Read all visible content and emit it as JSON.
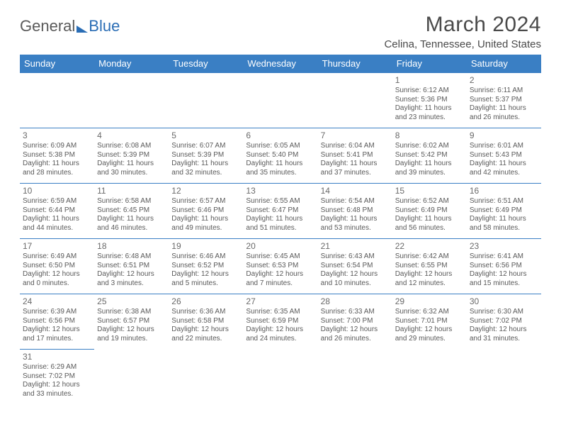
{
  "logo": {
    "general": "General",
    "blue": "Blue"
  },
  "title": "March 2024",
  "location": "Celina, Tennessee, United States",
  "weekdays": [
    "Sunday",
    "Monday",
    "Tuesday",
    "Wednesday",
    "Thursday",
    "Friday",
    "Saturday"
  ],
  "colors": {
    "header_bg": "#3a7fc4",
    "header_text": "#ffffff",
    "border": "#3a7fc4",
    "logo_blue": "#2a6db5",
    "text": "#4a4a4a"
  },
  "days": {
    "1": {
      "sunrise": "6:12 AM",
      "sunset": "5:36 PM",
      "daylight": "11 hours and 23 minutes."
    },
    "2": {
      "sunrise": "6:11 AM",
      "sunset": "5:37 PM",
      "daylight": "11 hours and 26 minutes."
    },
    "3": {
      "sunrise": "6:09 AM",
      "sunset": "5:38 PM",
      "daylight": "11 hours and 28 minutes."
    },
    "4": {
      "sunrise": "6:08 AM",
      "sunset": "5:39 PM",
      "daylight": "11 hours and 30 minutes."
    },
    "5": {
      "sunrise": "6:07 AM",
      "sunset": "5:39 PM",
      "daylight": "11 hours and 32 minutes."
    },
    "6": {
      "sunrise": "6:05 AM",
      "sunset": "5:40 PM",
      "daylight": "11 hours and 35 minutes."
    },
    "7": {
      "sunrise": "6:04 AM",
      "sunset": "5:41 PM",
      "daylight": "11 hours and 37 minutes."
    },
    "8": {
      "sunrise": "6:02 AM",
      "sunset": "5:42 PM",
      "daylight": "11 hours and 39 minutes."
    },
    "9": {
      "sunrise": "6:01 AM",
      "sunset": "5:43 PM",
      "daylight": "11 hours and 42 minutes."
    },
    "10": {
      "sunrise": "6:59 AM",
      "sunset": "6:44 PM",
      "daylight": "11 hours and 44 minutes."
    },
    "11": {
      "sunrise": "6:58 AM",
      "sunset": "6:45 PM",
      "daylight": "11 hours and 46 minutes."
    },
    "12": {
      "sunrise": "6:57 AM",
      "sunset": "6:46 PM",
      "daylight": "11 hours and 49 minutes."
    },
    "13": {
      "sunrise": "6:55 AM",
      "sunset": "6:47 PM",
      "daylight": "11 hours and 51 minutes."
    },
    "14": {
      "sunrise": "6:54 AM",
      "sunset": "6:48 PM",
      "daylight": "11 hours and 53 minutes."
    },
    "15": {
      "sunrise": "6:52 AM",
      "sunset": "6:49 PM",
      "daylight": "11 hours and 56 minutes."
    },
    "16": {
      "sunrise": "6:51 AM",
      "sunset": "6:49 PM",
      "daylight": "11 hours and 58 minutes."
    },
    "17": {
      "sunrise": "6:49 AM",
      "sunset": "6:50 PM",
      "daylight": "12 hours and 0 minutes."
    },
    "18": {
      "sunrise": "6:48 AM",
      "sunset": "6:51 PM",
      "daylight": "12 hours and 3 minutes."
    },
    "19": {
      "sunrise": "6:46 AM",
      "sunset": "6:52 PM",
      "daylight": "12 hours and 5 minutes."
    },
    "20": {
      "sunrise": "6:45 AM",
      "sunset": "6:53 PM",
      "daylight": "12 hours and 7 minutes."
    },
    "21": {
      "sunrise": "6:43 AM",
      "sunset": "6:54 PM",
      "daylight": "12 hours and 10 minutes."
    },
    "22": {
      "sunrise": "6:42 AM",
      "sunset": "6:55 PM",
      "daylight": "12 hours and 12 minutes."
    },
    "23": {
      "sunrise": "6:41 AM",
      "sunset": "6:56 PM",
      "daylight": "12 hours and 15 minutes."
    },
    "24": {
      "sunrise": "6:39 AM",
      "sunset": "6:56 PM",
      "daylight": "12 hours and 17 minutes."
    },
    "25": {
      "sunrise": "6:38 AM",
      "sunset": "6:57 PM",
      "daylight": "12 hours and 19 minutes."
    },
    "26": {
      "sunrise": "6:36 AM",
      "sunset": "6:58 PM",
      "daylight": "12 hours and 22 minutes."
    },
    "27": {
      "sunrise": "6:35 AM",
      "sunset": "6:59 PM",
      "daylight": "12 hours and 24 minutes."
    },
    "28": {
      "sunrise": "6:33 AM",
      "sunset": "7:00 PM",
      "daylight": "12 hours and 26 minutes."
    },
    "29": {
      "sunrise": "6:32 AM",
      "sunset": "7:01 PM",
      "daylight": "12 hours and 29 minutes."
    },
    "30": {
      "sunrise": "6:30 AM",
      "sunset": "7:02 PM",
      "daylight": "12 hours and 31 minutes."
    },
    "31": {
      "sunrise": "6:29 AM",
      "sunset": "7:02 PM",
      "daylight": "12 hours and 33 minutes."
    }
  },
  "labels": {
    "sunrise": "Sunrise: ",
    "sunset": "Sunset: ",
    "daylight": "Daylight: "
  },
  "layout": {
    "first_day_column": 5,
    "num_days": 31,
    "cols": 7
  }
}
